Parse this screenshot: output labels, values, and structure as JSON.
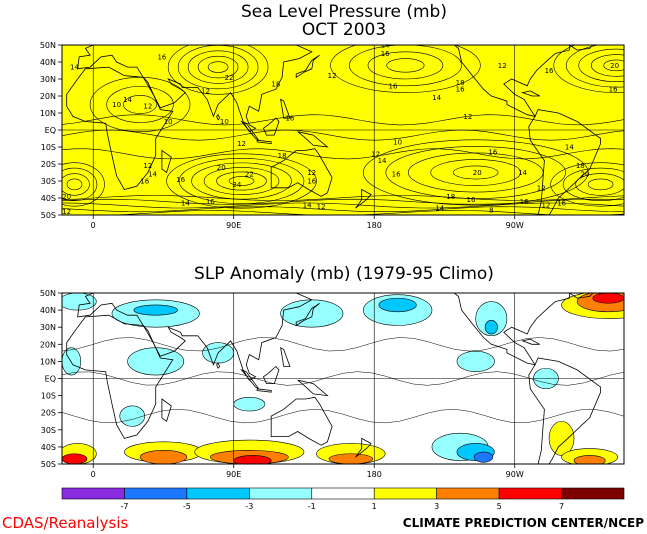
{
  "chart_data": [
    {
      "type": "heatmap",
      "title": "Sea Level Pressure (mb)",
      "subtitle": "OCT 2003",
      "fill_color": "#ffff00",
      "y_ticks": [
        "50N",
        "40N",
        "30N",
        "20N",
        "10N",
        "EQ",
        "10S",
        "20S",
        "30S",
        "40S",
        "50S"
      ],
      "x_ticks": [
        "0",
        "90E",
        "180",
        "90W",
        "0"
      ],
      "contour_labels": [
        {
          "text": "14",
          "lon": -12,
          "lat": 37
        },
        {
          "text": "16",
          "lon": 44,
          "lat": 43
        },
        {
          "text": "22",
          "lon": 87,
          "lat": 31
        },
        {
          "text": "18",
          "lon": 117,
          "lat": 27
        },
        {
          "text": "12",
          "lon": 72,
          "lat": 23
        },
        {
          "text": "14",
          "lon": 22,
          "lat": 18
        },
        {
          "text": "10",
          "lon": 15,
          "lat": 15
        },
        {
          "text": "12",
          "lon": 35,
          "lat": 14
        },
        {
          "text": "10",
          "lon": 48,
          "lat": 5
        },
        {
          "text": "16",
          "lon": 126,
          "lat": 7
        },
        {
          "text": "10",
          "lon": 84,
          "lat": 5
        },
        {
          "text": "12",
          "lon": 95,
          "lat": -8
        },
        {
          "text": "20",
          "lon": 82,
          "lat": -22
        },
        {
          "text": "22",
          "lon": 100,
          "lat": -26
        },
        {
          "text": "24",
          "lon": 92,
          "lat": -32
        },
        {
          "text": "12",
          "lon": 35,
          "lat": -21
        },
        {
          "text": "14",
          "lon": 38,
          "lat": -26
        },
        {
          "text": "16",
          "lon": 33,
          "lat": -30
        },
        {
          "text": "16",
          "lon": 56,
          "lat": -29
        },
        {
          "text": "20",
          "lon": -17,
          "lat": -39
        },
        {
          "text": "12",
          "lon": -17,
          "lat": -48
        },
        {
          "text": "14",
          "lon": 59,
          "lat": -43
        },
        {
          "text": "16",
          "lon": 75,
          "lat": -42
        },
        {
          "text": "14",
          "lon": 137,
          "lat": -44
        },
        {
          "text": "12",
          "lon": 146,
          "lat": -45
        },
        {
          "text": "12",
          "lon": 140,
          "lat": -25
        },
        {
          "text": "16",
          "lon": 140,
          "lat": -30
        },
        {
          "text": "14",
          "lon": 185,
          "lat": -18
        },
        {
          "text": "12",
          "lon": 181,
          "lat": -14
        },
        {
          "text": "10",
          "lon": 195,
          "lat": -7
        },
        {
          "text": "16",
          "lon": 194,
          "lat": -26
        },
        {
          "text": "12",
          "lon": 240,
          "lat": 8
        },
        {
          "text": "14",
          "lon": 220,
          "lat": 19
        },
        {
          "text": "16",
          "lon": 235,
          "lat": 24
        },
        {
          "text": "18",
          "lon": 235,
          "lat": 28
        },
        {
          "text": "16",
          "lon": 192,
          "lat": 26
        },
        {
          "text": "12",
          "lon": 153,
          "lat": 32
        },
        {
          "text": "14",
          "lon": 187,
          "lat": 50
        },
        {
          "text": "16",
          "lon": 187,
          "lat": 45
        },
        {
          "text": "12",
          "lon": 262,
          "lat": 38
        },
        {
          "text": "16",
          "lon": 292,
          "lat": 35
        },
        {
          "text": "20",
          "lon": 334,
          "lat": 38
        },
        {
          "text": "16",
          "lon": 333,
          "lat": 24
        },
        {
          "text": "14",
          "lon": 305,
          "lat": -10
        },
        {
          "text": "18",
          "lon": 312,
          "lat": -21
        },
        {
          "text": "20",
          "lon": 315,
          "lat": -26
        },
        {
          "text": "16",
          "lon": 256,
          "lat": -13
        },
        {
          "text": "20",
          "lon": 246,
          "lat": -25
        },
        {
          "text": "18",
          "lon": 229,
          "lat": -39
        },
        {
          "text": "16",
          "lon": 242,
          "lat": -41
        },
        {
          "text": "14",
          "lon": 222,
          "lat": -46
        },
        {
          "text": "8",
          "lon": 255,
          "lat": -47
        },
        {
          "text": "14",
          "lon": 275,
          "lat": -25
        },
        {
          "text": "16",
          "lon": 276,
          "lat": -42
        },
        {
          "text": "12",
          "lon": 287,
          "lat": -34
        },
        {
          "text": "12",
          "lon": 290,
          "lat": -44
        },
        {
          "text": "16",
          "lon": 300,
          "lat": -43
        },
        {
          "text": "18",
          "lon": 121,
          "lat": -15
        }
      ]
    },
    {
      "type": "heatmap",
      "title": "SLP Anomaly (mb) (1979-95 Climo)",
      "y_ticks": [
        "50N",
        "40N",
        "30N",
        "20N",
        "10N",
        "EQ",
        "10S",
        "20S",
        "30S",
        "40S",
        "50S"
      ],
      "x_ticks": [
        "0",
        "90E",
        "180",
        "90W",
        "0"
      ],
      "colorbar": {
        "colors": [
          "#8a2be2",
          "#1e78ff",
          "#00c8ff",
          "#96ffff",
          "#ffffff",
          "#ffff00",
          "#ff8000",
          "#ff0000",
          "#7d0000"
        ],
        "labels": [
          "-7",
          "-5",
          "-3",
          "-1",
          "1",
          "3",
          "5",
          "7"
        ]
      },
      "anomaly_regions": [
        {
          "lon": 45,
          "lat": -43,
          "rx": 25,
          "ry": 6,
          "level": 1
        },
        {
          "lon": 45,
          "lat": -46,
          "rx": 15,
          "ry": 4,
          "level": 2
        },
        {
          "lon": 100,
          "lat": -43,
          "rx": 35,
          "ry": 7,
          "level": 1
        },
        {
          "lon": 100,
          "lat": -46,
          "rx": 25,
          "ry": 4,
          "level": 2
        },
        {
          "lon": 102,
          "lat": -48,
          "rx": 12,
          "ry": 3,
          "level": 3
        },
        {
          "lon": 165,
          "lat": -44,
          "rx": 22,
          "ry": 6,
          "level": 1
        },
        {
          "lon": 165,
          "lat": -47,
          "rx": 14,
          "ry": 3,
          "level": 2
        },
        {
          "lon": -10,
          "lat": -44,
          "rx": 12,
          "ry": 6,
          "level": 1
        },
        {
          "lon": -12,
          "lat": -47,
          "rx": 8,
          "ry": 3,
          "level": 3
        },
        {
          "lon": 300,
          "lat": -35,
          "rx": 8,
          "ry": 10,
          "level": 1
        },
        {
          "lon": 318,
          "lat": -46,
          "rx": 18,
          "ry": 5,
          "level": 1
        },
        {
          "lon": 318,
          "lat": -48,
          "rx": 10,
          "ry": 3,
          "level": 2
        },
        {
          "lon": 330,
          "lat": 43,
          "rx": 30,
          "ry": 8,
          "level": 1
        },
        {
          "lon": 330,
          "lat": 45,
          "rx": 20,
          "ry": 6,
          "level": 2
        },
        {
          "lon": 330,
          "lat": 47,
          "rx": 10,
          "ry": 3,
          "level": 3
        },
        {
          "lon": 40,
          "lat": 38,
          "rx": 28,
          "ry": 8,
          "level": -1
        },
        {
          "lon": 40,
          "lat": 40,
          "rx": 14,
          "ry": 3,
          "level": -2
        },
        {
          "lon": -10,
          "lat": 45,
          "rx": 12,
          "ry": 5,
          "level": -1
        },
        {
          "lon": 140,
          "lat": 38,
          "rx": 20,
          "ry": 8,
          "level": -1
        },
        {
          "lon": 195,
          "lat": 40,
          "rx": 22,
          "ry": 9,
          "level": -1
        },
        {
          "lon": 195,
          "lat": 43,
          "rx": 12,
          "ry": 4,
          "level": -2
        },
        {
          "lon": 255,
          "lat": 35,
          "rx": 10,
          "ry": 10,
          "level": -1
        },
        {
          "lon": 255,
          "lat": 30,
          "rx": 4,
          "ry": 4,
          "level": -2
        },
        {
          "lon": 235,
          "lat": -40,
          "rx": 18,
          "ry": 8,
          "level": -1
        },
        {
          "lon": 245,
          "lat": -43,
          "rx": 12,
          "ry": 5,
          "level": -2
        },
        {
          "lon": 250,
          "lat": -46,
          "rx": 6,
          "ry": 3,
          "level": -3
        },
        {
          "lon": -14,
          "lat": 10,
          "rx": 6,
          "ry": 8,
          "level": -1
        },
        {
          "lon": 40,
          "lat": 10,
          "rx": 18,
          "ry": 8,
          "level": -1
        },
        {
          "lon": 80,
          "lat": 15,
          "rx": 10,
          "ry": 6,
          "level": -1
        },
        {
          "lon": 25,
          "lat": -22,
          "rx": 8,
          "ry": 6,
          "level": -1
        },
        {
          "lon": 100,
          "lat": -15,
          "rx": 10,
          "ry": 4,
          "level": -1
        },
        {
          "lon": 245,
          "lat": 10,
          "rx": 12,
          "ry": 6,
          "level": -1
        },
        {
          "lon": 290,
          "lat": 0,
          "rx": 8,
          "ry": 6,
          "level": -1
        }
      ]
    }
  ],
  "footer": {
    "left": "CDAS/Reanalysis",
    "right": "CLIMATE PREDICTION CENTER/NCEP"
  }
}
